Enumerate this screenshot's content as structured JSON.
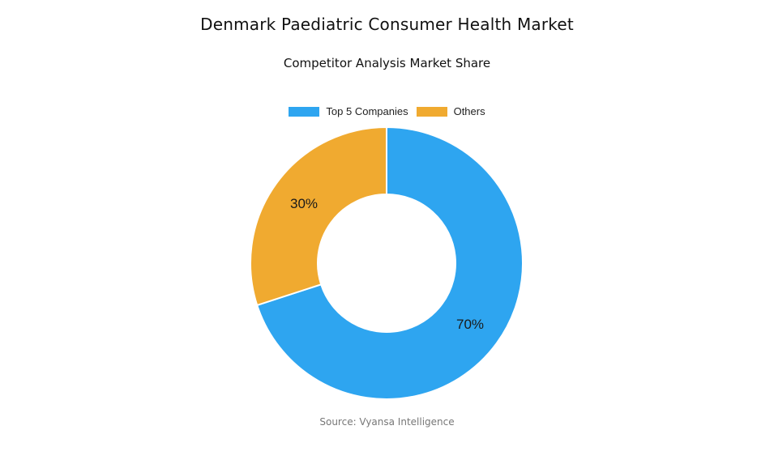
{
  "header": {
    "title": "Denmark Paediatric Consumer Health Market",
    "subtitle": "Competitor Analysis Market Share"
  },
  "legend": {
    "items": [
      {
        "label": "Top 5 Companies",
        "color": "#2EA5F0"
      },
      {
        "label": "Others",
        "color": "#F0AA30"
      }
    ]
  },
  "labels": {
    "top5": "70%",
    "others": "30%"
  },
  "footer": {
    "source": "Source: Vyansa Intelligence"
  },
  "chart_data": {
    "type": "pie",
    "variant": "donut",
    "title": "Denmark Paediatric Consumer Health Market",
    "subtitle": "Competitor Analysis Market Share",
    "categories": [
      "Top 5 Companies",
      "Others"
    ],
    "values": [
      70,
      30
    ],
    "unit": "%",
    "colors": [
      "#2EA5F0",
      "#F0AA30"
    ],
    "legend_position": "top",
    "data_labels": [
      "70%",
      "30%"
    ],
    "source": "Source: Vyansa Intelligence"
  }
}
